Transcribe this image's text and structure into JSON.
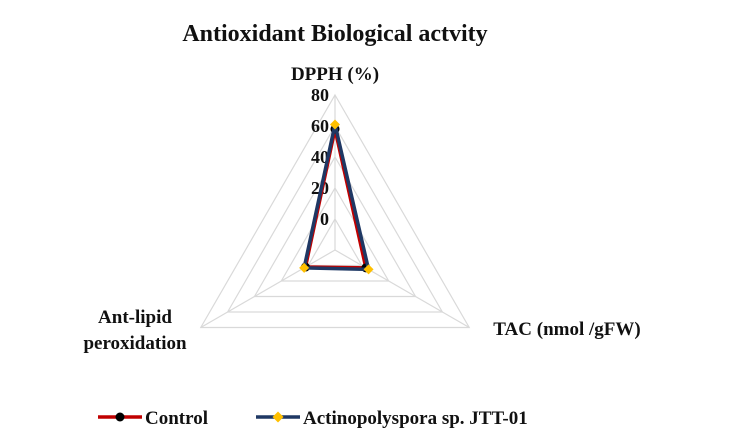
{
  "chart_data": {
    "type": "radar",
    "title": "Antioxidant Biological actvity",
    "axes": [
      "DPPH (%)",
      "TAC  (nmol /gFW)",
      "Ant-lipid peroxidation"
    ],
    "axis_label_lines": [
      [
        "DPPH (%)"
      ],
      [
        "TAC  (nmol /gFW)"
      ],
      [
        "Ant-lipid",
        "peroxidation"
      ]
    ],
    "rlim": [
      -20,
      80
    ],
    "ticks": [
      0,
      20,
      40,
      60,
      80
    ],
    "grid": true,
    "legend_position": "bottom",
    "series": [
      {
        "name": "Control",
        "values": [
          58,
          3,
          2
        ],
        "color": "#c00000",
        "marker_color": "#000000"
      },
      {
        "name": "Actinopolyspora sp. JTT-01",
        "values": [
          61,
          5,
          3
        ],
        "color": "#1f3864",
        "marker_color": "#ffc000"
      }
    ]
  },
  "colors": {
    "grid": "#d9d9d9",
    "control_line": "#c00000",
    "actino_line": "#1f3864",
    "actino_marker": "#ffc000"
  }
}
